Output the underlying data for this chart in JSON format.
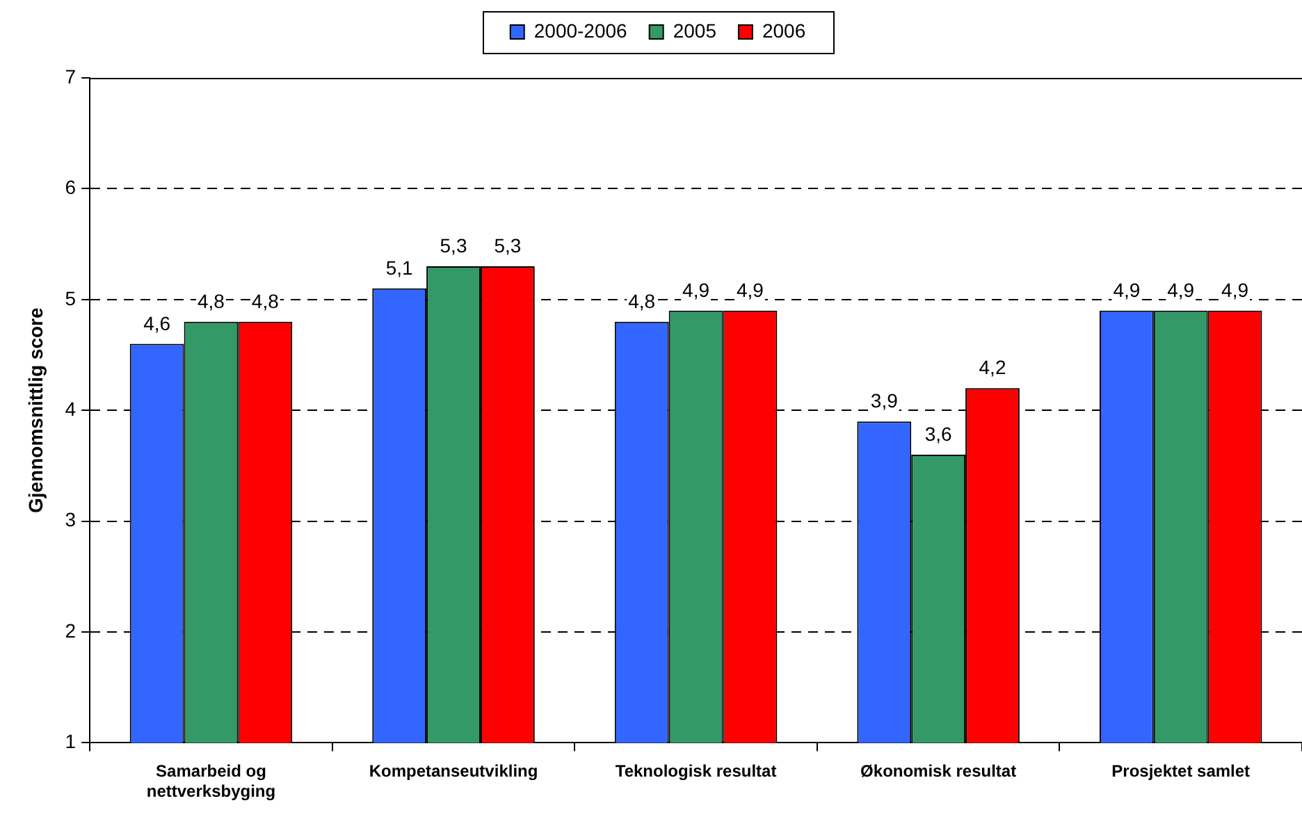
{
  "chart_data": {
    "type": "bar",
    "categories": [
      "Samarbeid og nettverksbyging",
      "Kompetanseutvikling",
      "Teknologisk resultat",
      "Økonomisk resultat",
      "Prosjektet samlet"
    ],
    "series": [
      {
        "name": "2000-2006",
        "color": "#3366ff",
        "values": [
          4.6,
          5.1,
          4.8,
          3.9,
          4.9
        ],
        "value_labels": [
          "4,6",
          "5,1",
          "4,8",
          "3,9",
          "4,9"
        ]
      },
      {
        "name": "2005",
        "color": "#339966",
        "values": [
          4.8,
          5.3,
          4.9,
          3.6,
          4.9
        ],
        "value_labels": [
          "4,8",
          "5,3",
          "4,9",
          "3,6",
          "4,9"
        ]
      },
      {
        "name": "2006",
        "color": "#ff0000",
        "values": [
          4.8,
          5.3,
          4.9,
          4.2,
          4.9
        ],
        "value_labels": [
          "4,8",
          "5,3",
          "4,9",
          "4,2",
          "4,9"
        ]
      }
    ],
    "ylabel": "Gjennomsnittlig score",
    "ylim": [
      1,
      7
    ],
    "yticks": [
      1,
      2,
      3,
      4,
      5,
      6,
      7
    ],
    "grid": "y",
    "legend": "top"
  }
}
